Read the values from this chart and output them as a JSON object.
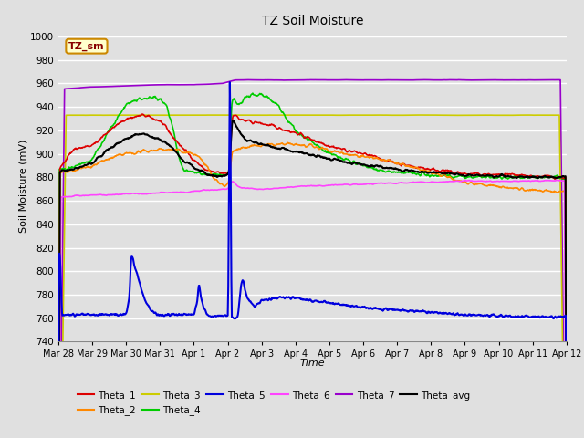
{
  "title": "TZ Soil Moisture",
  "xlabel": "Time",
  "ylabel": "Soil Moisture (mV)",
  "ylim": [
    740,
    1005
  ],
  "yticks": [
    740,
    760,
    780,
    800,
    820,
    840,
    860,
    880,
    900,
    920,
    940,
    960,
    980,
    1000
  ],
  "background_color": "#e0e0e0",
  "plot_bg_color": "#e0e0e0",
  "grid_color": "#ffffff",
  "colors": {
    "Theta_1": "#dd0000",
    "Theta_2": "#ff8800",
    "Theta_3": "#cccc00",
    "Theta_4": "#00cc00",
    "Theta_5": "#0000dd",
    "Theta_6": "#ff44ff",
    "Theta_7": "#9900cc",
    "Theta_avg": "#000000"
  },
  "legend_box": {
    "label": "TZ_sm",
    "bg": "#ffffcc",
    "border": "#cc8800"
  },
  "n_points": 1000,
  "x_start": 0,
  "x_end": 15,
  "xtick_labels": [
    "Mar 28",
    "Mar 29",
    "Mar 30",
    "Mar 31",
    "Apr 1",
    "Apr 2",
    "Apr 3",
    "Apr 4",
    "Apr 5",
    "Apr 6",
    "Apr 7",
    "Apr 8",
    "Apr 9",
    "Apr 10",
    "Apr 11",
    "Apr 12"
  ],
  "xtick_positions": [
    0,
    1,
    2,
    3,
    4,
    5,
    6,
    7,
    8,
    9,
    10,
    11,
    12,
    13,
    14,
    15
  ]
}
